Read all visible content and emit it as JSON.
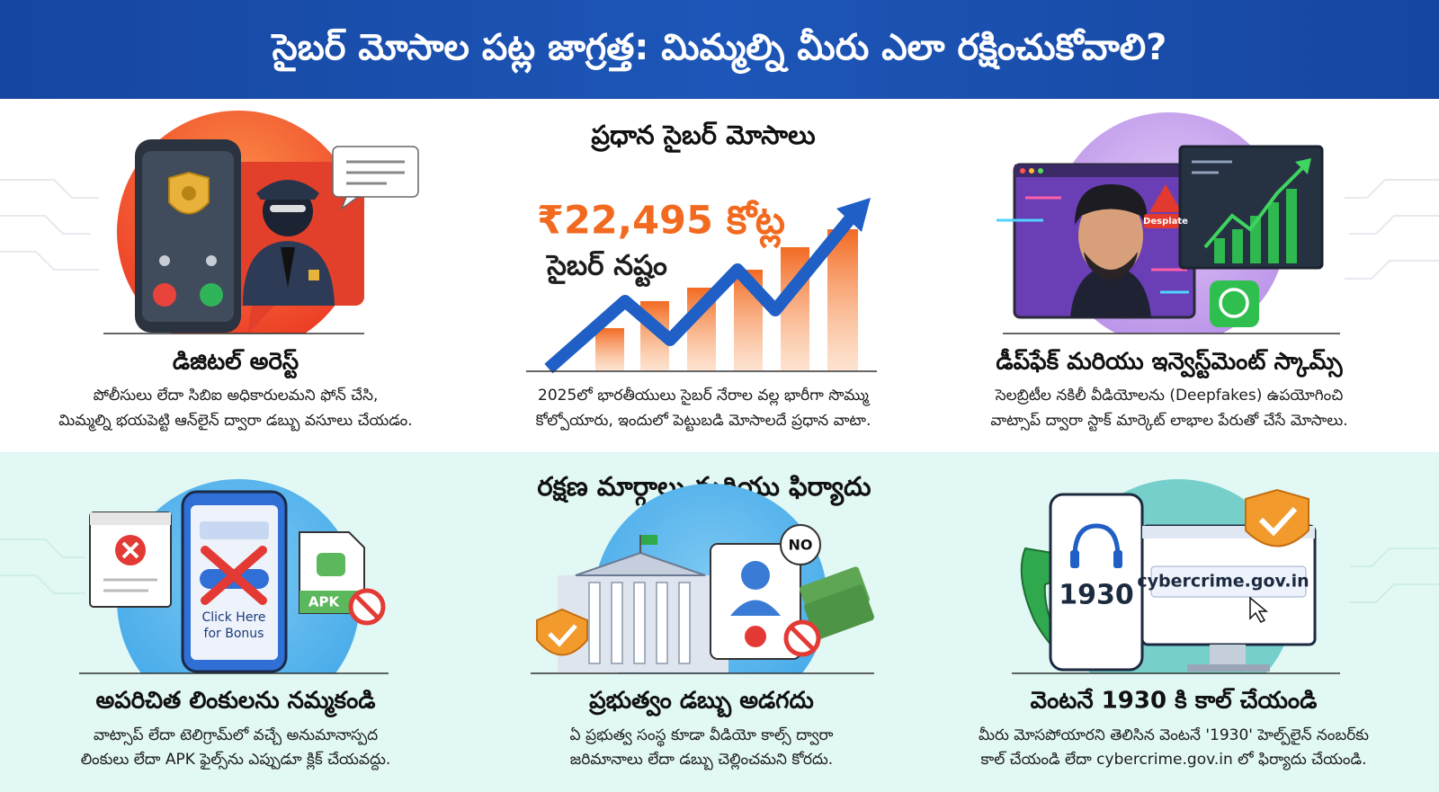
{
  "header": {
    "title": "సైబర్ మోసాల పట్ల జాగ్రత్త: మిమ్మల్ని మీరు ఎలా రక్షించుకోవాలి?"
  },
  "top_section": {
    "heading": "ప్రధాన సైబర్ మోసాలు",
    "stat": {
      "amount": "₹22,495 కోట్ల",
      "label": "సైబర్ నష్టం",
      "description": [
        "2025లో భారతీయులు సైబర్ నేరాల వల్ల భారీగా సొమ్ము",
        "కోల్పోయారు, ఇందులో పెట్టుబడి మోసాలదే ప్రధాన వాటా."
      ]
    },
    "cards": [
      {
        "title": "డిజిటల్ అరెస్ట్",
        "description": [
          "పోలీసులు లేదా సిబిఐ అధికారులమని ఫోన్ చేసి,",
          "మిమ్మల్ని భయపెట్టి ఆన్‌లైన్ ద్వారా డబ్బు వసూలు చేయడం."
        ]
      },
      {
        "title": "డీప్‌ఫేక్ మరియు ఇన్వెస్ట్‌మెంట్ స్కామ్స్",
        "description": [
          "సెలబ్రిటీల నకిలీ వీడియోలను (Deepfakes) ఉపయోగించి",
          "వాట్సాప్ ద్వారా స్టాక్ మార్కెట్ లాభాల పేరుతో చేసే మోసాలు."
        ]
      }
    ]
  },
  "bottom_section": {
    "heading": "రక్షణ మార్గాలు మరియు ఫిర్యాదు",
    "cards": [
      {
        "title": "అపరిచిత లింకులను నమ్మకండి",
        "description": [
          "వాట్సాప్ లేదా టెలిగ్రామ్‌లో వచ్చే అనుమానాస్పద",
          "లింకులు లేదా APK ఫైల్స్‌ను ఎప్పుడూ క్లిక్ చేయవద్దు."
        ]
      },
      {
        "title": "ప్రభుత్వం డబ్బు అడగదు",
        "description": [
          "ఏ ప్రభుత్వ సంస్థ కూడా వీడియో కాల్స్ ద్వారా",
          "జరిమానాలు లేదా డబ్బు చెల్లించమని కోరదు."
        ]
      },
      {
        "title": "వెంటనే 1930 కి కాల్ చేయండి",
        "description": [
          "మీరు మోసపోయారని తెలిసిన వెంటనే '1930' హెల్ప్‌లైన్ నంబర్‌కు",
          "కాల్ చేయండి లేదా cybercrime.gov.in లో ఫిర్యాదు చేయండి."
        ]
      }
    ]
  },
  "illustrations": {
    "warning_label": "Desplate",
    "popup_text": [
      "Click Here",
      "for Bonus"
    ],
    "file_label": "APK",
    "refusal": "NO",
    "helpline": "1930",
    "website": "cybercrime.gov.in"
  }
}
